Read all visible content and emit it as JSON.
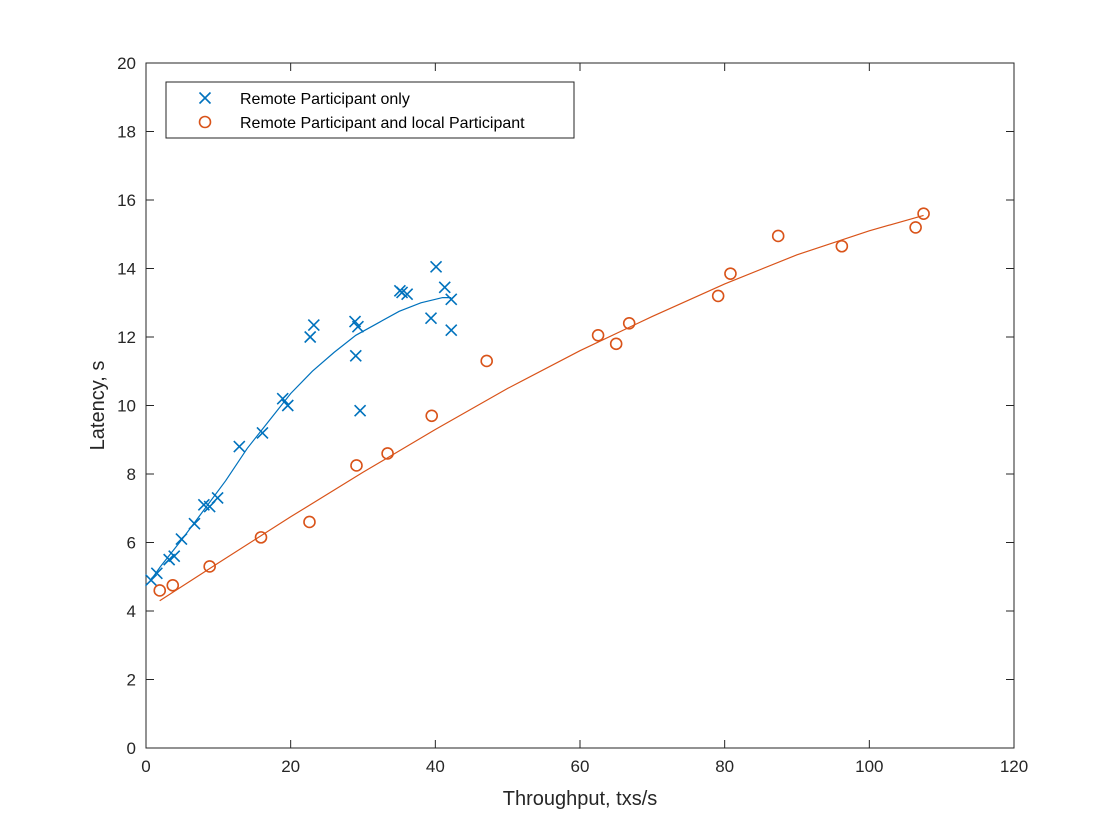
{
  "chart_data": {
    "type": "scatter",
    "title": "",
    "xlabel": "Throughput, txs/s",
    "ylabel": "Latency, s",
    "xlim": [
      0,
      120
    ],
    "ylim": [
      0,
      20
    ],
    "xticks": [
      0,
      20,
      40,
      60,
      80,
      100,
      120
    ],
    "yticks": [
      0,
      2,
      4,
      6,
      8,
      10,
      12,
      14,
      16,
      18,
      20
    ],
    "grid": false,
    "legend_position": "top-left",
    "series": [
      {
        "name": "Remote Participant only",
        "marker": "x",
        "color": "#0072BD",
        "points": [
          [
            0.7,
            4.9
          ],
          [
            1.5,
            5.1
          ],
          [
            3.2,
            5.5
          ],
          [
            3.9,
            5.6
          ],
          [
            4.9,
            6.1
          ],
          [
            6.7,
            6.55
          ],
          [
            8.0,
            7.1
          ],
          [
            8.8,
            7.05
          ],
          [
            9.9,
            7.3
          ],
          [
            12.9,
            8.8
          ],
          [
            16.1,
            9.2
          ],
          [
            18.9,
            10.2
          ],
          [
            19.6,
            10.0
          ],
          [
            22.7,
            12.0
          ],
          [
            23.2,
            12.35
          ],
          [
            28.9,
            12.45
          ],
          [
            29.3,
            12.3
          ],
          [
            29.0,
            11.45
          ],
          [
            29.6,
            9.85
          ],
          [
            35.1,
            13.35
          ],
          [
            35.4,
            13.3
          ],
          [
            36.1,
            13.25
          ],
          [
            39.4,
            12.55
          ],
          [
            40.1,
            14.05
          ],
          [
            41.3,
            13.45
          ],
          [
            42.2,
            13.1
          ],
          [
            42.2,
            12.2
          ]
        ],
        "fit": [
          [
            0.5,
            4.85
          ],
          [
            2,
            5.3
          ],
          [
            5,
            6.1
          ],
          [
            8,
            6.95
          ],
          [
            11,
            7.8
          ],
          [
            14,
            8.75
          ],
          [
            17,
            9.55
          ],
          [
            20,
            10.35
          ],
          [
            23,
            11.0
          ],
          [
            26,
            11.55
          ],
          [
            29,
            12.05
          ],
          [
            32,
            12.4
          ],
          [
            35,
            12.75
          ],
          [
            38,
            13.0
          ],
          [
            41,
            13.15
          ],
          [
            42.2,
            13.15
          ]
        ]
      },
      {
        "name": "Remote Participant and local Participant",
        "marker": "o",
        "color": "#D95319",
        "points": [
          [
            1.9,
            4.6
          ],
          [
            3.7,
            4.75
          ],
          [
            8.8,
            5.3
          ],
          [
            15.9,
            6.15
          ],
          [
            22.6,
            6.6
          ],
          [
            29.1,
            8.25
          ],
          [
            33.4,
            8.6
          ],
          [
            39.5,
            9.7
          ],
          [
            47.1,
            11.3
          ],
          [
            62.5,
            12.05
          ],
          [
            65.0,
            11.8
          ],
          [
            66.8,
            12.4
          ],
          [
            79.1,
            13.2
          ],
          [
            80.8,
            13.85
          ],
          [
            87.4,
            14.95
          ],
          [
            96.2,
            14.65
          ],
          [
            106.4,
            15.2
          ],
          [
            107.5,
            15.6
          ]
        ],
        "fit": [
          [
            1.9,
            4.3
          ],
          [
            10,
            5.4
          ],
          [
            20,
            6.75
          ],
          [
            30,
            8.05
          ],
          [
            40,
            9.3
          ],
          [
            50,
            10.5
          ],
          [
            60,
            11.6
          ],
          [
            70,
            12.6
          ],
          [
            80,
            13.55
          ],
          [
            90,
            14.4
          ],
          [
            100,
            15.1
          ],
          [
            107.5,
            15.55
          ]
        ]
      }
    ]
  }
}
